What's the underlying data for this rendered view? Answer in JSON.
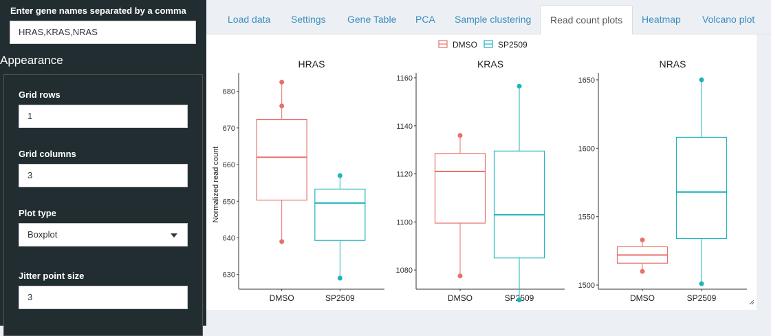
{
  "sidebar": {
    "gene_label": "Enter gene names separated by a comma",
    "gene_value": "HRAS,KRAS,NRAS",
    "appearance_heading": "Appearance",
    "grid_rows_label": "Grid rows",
    "grid_rows_value": "1",
    "grid_columns_label": "Grid columns",
    "grid_columns_value": "3",
    "plot_type_label": "Plot type",
    "plot_type_value": "Boxplot",
    "jitter_label": "Jitter point size",
    "jitter_value": "3"
  },
  "tabs": [
    {
      "label": "Load data",
      "active": false
    },
    {
      "label": "Settings",
      "active": false
    },
    {
      "label": "Gene Table",
      "active": false
    },
    {
      "label": "PCA",
      "active": false
    },
    {
      "label": "Sample clustering",
      "active": false
    },
    {
      "label": "Read count plots",
      "active": true
    },
    {
      "label": "Heatmap",
      "active": false
    },
    {
      "label": "Volcano plot",
      "active": false
    }
  ],
  "colors": {
    "DMSO": "#e7716a",
    "SP2509": "#1db5bd",
    "sidebar_bg": "#222d32",
    "tab_link": "#3c8dbc"
  },
  "chart_data": {
    "type": "boxplot",
    "legend": [
      "DMSO",
      "SP2509"
    ],
    "legend_position": "top",
    "ylabel": "Normalized read count",
    "panels": [
      {
        "title": "HRAS",
        "categories": [
          "DMSO",
          "SP2509"
        ],
        "ylim": [
          626,
          685
        ],
        "yticks": [
          630,
          640,
          650,
          660,
          670,
          680
        ],
        "boxes": [
          {
            "group": "DMSO",
            "min": 639,
            "q1": 650.3,
            "median": 662,
            "q3": 672.3,
            "max": 676,
            "outliers": [
              682.5
            ]
          },
          {
            "group": "SP2509",
            "min": 629,
            "q1": 639.3,
            "median": 649.5,
            "q3": 653.3,
            "max": 657,
            "outliers": []
          }
        ]
      },
      {
        "title": "KRAS",
        "categories": [
          "DMSO",
          "SP2509"
        ],
        "ylim": [
          1072,
          1162
        ],
        "yticks": [
          1080,
          1100,
          1120,
          1140,
          1160
        ],
        "boxes": [
          {
            "group": "DMSO",
            "min": 1077.5,
            "q1": 1099.5,
            "median": 1121,
            "q3": 1128.5,
            "max": 1136,
            "outliers": []
          },
          {
            "group": "SP2509",
            "min": 1067.5,
            "q1": 1085,
            "median": 1103,
            "q3": 1129.5,
            "max": 1156.5,
            "outliers": []
          }
        ]
      },
      {
        "title": "NRAS",
        "categories": [
          "DMSO",
          "SP2509"
        ],
        "ylim": [
          1497,
          1655
        ],
        "yticks": [
          1500,
          1550,
          1600,
          1650
        ],
        "boxes": [
          {
            "group": "DMSO",
            "min": 1510,
            "q1": 1516,
            "median": 1522,
            "q3": 1528,
            "max": 1533,
            "outliers": []
          },
          {
            "group": "SP2509",
            "min": 1501,
            "q1": 1534,
            "median": 1568,
            "q3": 1608,
            "max": 1650,
            "outliers": []
          }
        ]
      }
    ]
  }
}
